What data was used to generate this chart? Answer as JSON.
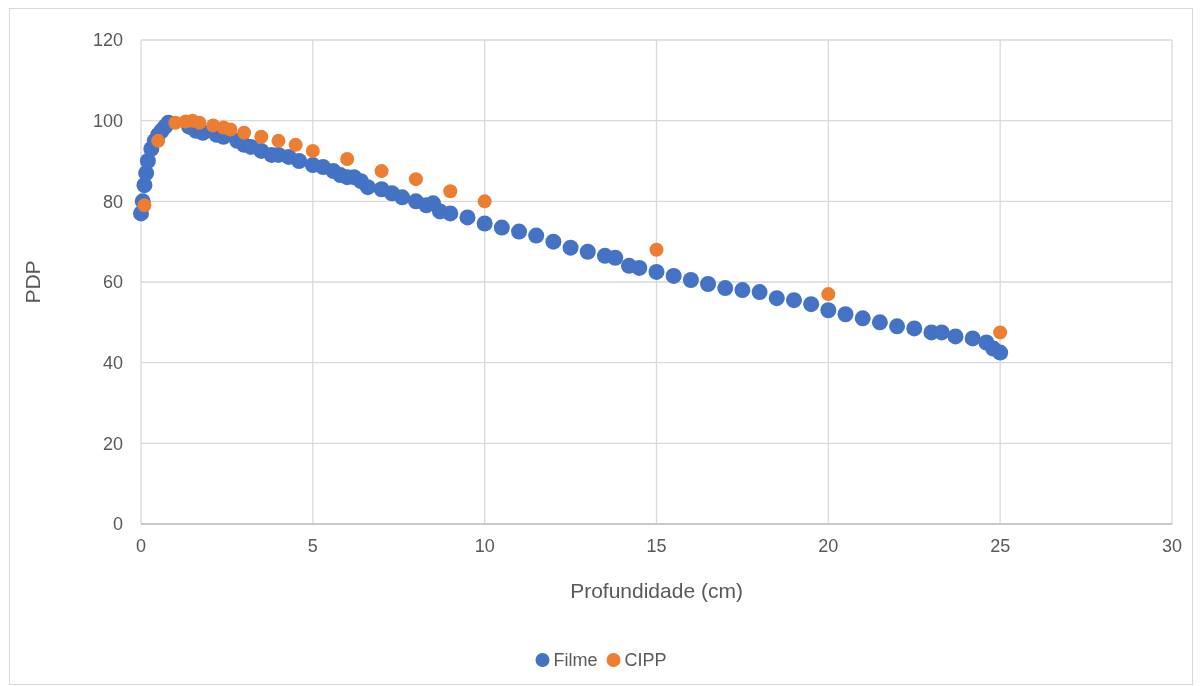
{
  "chart_data": {
    "type": "scatter",
    "xlabel": "Profundidade (cm)",
    "ylabel": "PDP",
    "xlim": [
      0,
      30
    ],
    "xticks": [
      0,
      5,
      10,
      15,
      20,
      25,
      30
    ],
    "ylim": [
      0,
      120
    ],
    "yticks": [
      0,
      20,
      40,
      60,
      80,
      100,
      120
    ],
    "grid": true,
    "legend": "bottom",
    "marker": "circle",
    "series": [
      {
        "name": "Filme",
        "color": "#4472c4",
        "x": [
          0,
          0.05,
          0.1,
          0.15,
          0.2,
          0.3,
          0.4,
          0.5,
          0.6,
          0.7,
          0.8,
          1.4,
          1.6,
          1.8,
          2.2,
          2.4,
          2.8,
          3.0,
          3.2,
          3.5,
          3.8,
          4.0,
          4.3,
          4.6,
          5.0,
          5.3,
          5.6,
          5.8,
          6.0,
          6.2,
          6.4,
          6.6,
          7.0,
          7.3,
          7.6,
          8.0,
          8.3,
          8.5,
          8.7,
          9.0,
          9.5,
          10.0,
          10.5,
          11.0,
          11.5,
          12.0,
          12.5,
          13.0,
          13.5,
          13.8,
          14.2,
          14.5,
          15.0,
          15.5,
          16.0,
          16.5,
          17.0,
          17.5,
          18.0,
          18.5,
          19.0,
          19.5,
          20.0,
          20.5,
          21.0,
          21.5,
          22.0,
          22.5,
          23.0,
          23.3,
          23.7,
          24.2,
          24.6,
          24.8,
          25.0
        ],
        "values": [
          77,
          80,
          84,
          87,
          90,
          93,
          95,
          96.5,
          97.5,
          98.5,
          99.5,
          98.5,
          97.5,
          97,
          96.5,
          96,
          95,
          94,
          93.5,
          92.5,
          91.5,
          91.5,
          91,
          90,
          89,
          88.5,
          87.5,
          86.5,
          86,
          86,
          85,
          83.5,
          83,
          82,
          81,
          80,
          79,
          79.5,
          77.5,
          77,
          76,
          74.5,
          73.5,
          72.5,
          71.5,
          70,
          68.5,
          67.5,
          66.5,
          66,
          64,
          63.5,
          62.5,
          61.5,
          60.5,
          59.5,
          58.5,
          58,
          57.5,
          56,
          55.5,
          54.5,
          53,
          52,
          51,
          50,
          49,
          48.5,
          47.5,
          47.5,
          46.5,
          46,
          45,
          43.5,
          42.5
        ]
      },
      {
        "name": "CIPP",
        "color": "#ed7d31",
        "x": [
          0.1,
          0.5,
          1,
          1.3,
          1.5,
          1.7,
          2.1,
          2.4,
          2.6,
          3,
          3.5,
          4,
          4.5,
          5,
          6,
          7,
          8,
          9,
          10,
          15,
          20,
          25
        ],
        "values": [
          79,
          95,
          99.5,
          99.8,
          100,
          99.5,
          98.8,
          98.3,
          97.8,
          97,
          96,
          95,
          94,
          92.5,
          90.5,
          87.5,
          85.5,
          82.5,
          80,
          68,
          57,
          47.5
        ]
      }
    ]
  }
}
